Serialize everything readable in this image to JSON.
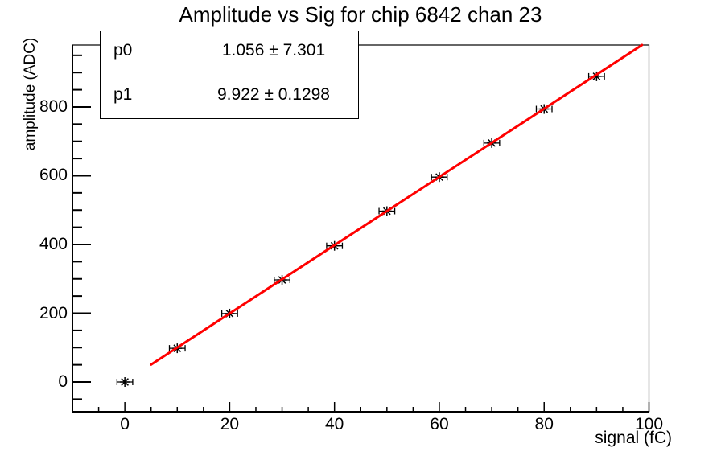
{
  "stats_box": {
    "rows": [
      {
        "name": "p0",
        "value": "1.056 ± 7.301"
      },
      {
        "name": "p1",
        "value": "9.922 ± 0.1298"
      }
    ]
  },
  "chart_data": {
    "type": "scatter",
    "title": "Amplitude vs Sig for chip 6842 chan 23",
    "xlabel": "signal (fC)",
    "ylabel": "amplitude (ADC)",
    "x": [
      0,
      10,
      20,
      30,
      40,
      50,
      60,
      70,
      80,
      90
    ],
    "y": [
      0,
      98,
      199,
      297,
      396,
      497,
      596,
      695,
      794,
      889
    ],
    "x_error": 1.5,
    "xlim": [
      -10,
      100
    ],
    "ylim": [
      -86.5,
      980
    ],
    "x_major_ticks": [
      0,
      20,
      40,
      60,
      80,
      100
    ],
    "x_minor_step": 5,
    "y_major_ticks": [
      0,
      200,
      400,
      600,
      800
    ],
    "y_minor_step": 50,
    "grid": false,
    "legend": "none",
    "marker": "asterisk",
    "marker_color": "#000000",
    "axis_color": "#000000",
    "fit": {
      "p0": 1.056,
      "p1": 9.922,
      "draw_range": [
        5,
        100
      ],
      "color": "#ff0000",
      "clip_to_frame": true
    }
  }
}
